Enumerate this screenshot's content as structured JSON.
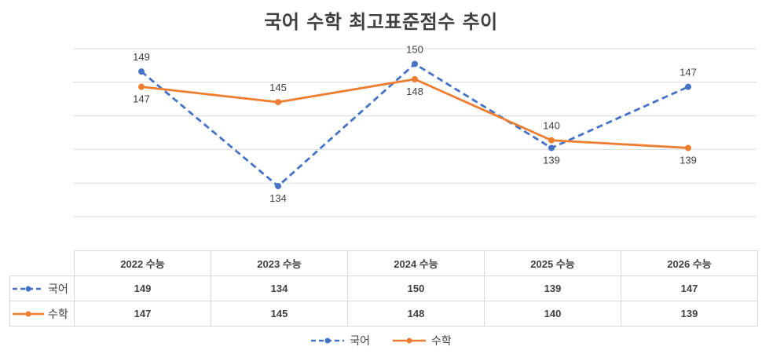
{
  "chart_data": {
    "type": "line",
    "title": "국어 수학 최고표준점수 추이",
    "categories": [
      "2022 수능",
      "2023 수능",
      "2024 수능",
      "2025 수능",
      "2026 수능"
    ],
    "series": [
      {
        "name": "국어",
        "values": [
          149,
          134,
          150,
          139,
          147
        ],
        "color": "#4472c4",
        "style": "dashed"
      },
      {
        "name": "수학",
        "values": [
          147,
          145,
          148,
          140,
          139
        ],
        "color": "#ed7d31",
        "style": "solid"
      }
    ],
    "ylim": [
      130,
      152
    ],
    "grid": true,
    "legend": "bottom",
    "data_table": true
  }
}
